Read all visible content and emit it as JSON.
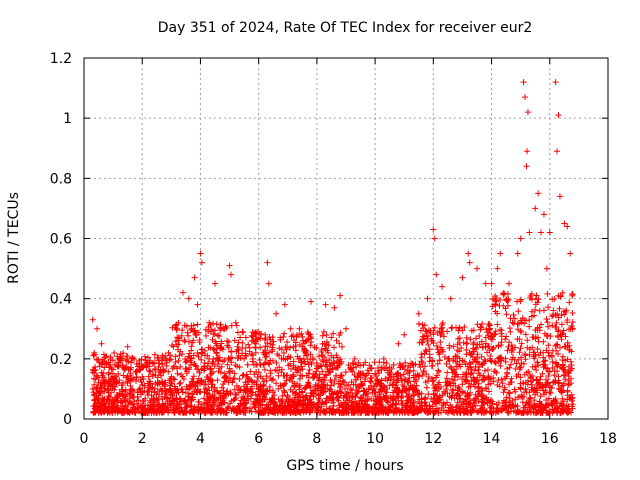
{
  "chart_data": {
    "type": "scatter",
    "title": "Day 351 of 2024, Rate Of TEC Index for receiver eur2",
    "xlabel": "GPS time / hours",
    "ylabel": "ROTI / TECUs",
    "xlim": [
      0,
      18
    ],
    "ylim": [
      0,
      1.2
    ],
    "xticks": [
      "0",
      "2",
      "4",
      "6",
      "8",
      "10",
      "12",
      "14",
      "16",
      "18"
    ],
    "yticks": [
      "0",
      "0.2",
      "0.4",
      "0.6",
      "0.8",
      "1",
      "1.2"
    ],
    "grid": true,
    "marker": "+",
    "color": "#ff0000",
    "series": [
      {
        "name": "ROTI",
        "note": "dense scatter, roughly 0.02–0.35 TECUs from ~0.3 h to ~16.8 h",
        "x": [
          0.3,
          0.35,
          0.45,
          0.5,
          0.6,
          0.9,
          1.2,
          1.5,
          1.6,
          2.0,
          2.1,
          2.6,
          2.9,
          3.2,
          3.4,
          3.6,
          3.7,
          3.8,
          3.9,
          4.0,
          4.05,
          4.3,
          4.5,
          4.8,
          5.0,
          5.05,
          5.5,
          5.9,
          6.3,
          6.35,
          6.6,
          6.9,
          7.1,
          7.4,
          7.6,
          7.8,
          8.3,
          8.6,
          8.8,
          9.0,
          9.3,
          9.6,
          10.0,
          10.3,
          10.8,
          11.0,
          11.5,
          11.8,
          12.0,
          12.05,
          12.1,
          12.3,
          12.6,
          13.0,
          13.2,
          13.25,
          13.5,
          13.8,
          14.0,
          14.2,
          14.3,
          14.6,
          14.9,
          15.0,
          15.1,
          15.15,
          15.2,
          15.22,
          15.25,
          15.3,
          15.5,
          15.6,
          15.7,
          15.8,
          15.9,
          16.0,
          16.2,
          16.25,
          16.3,
          16.35,
          16.5,
          16.6,
          16.7
        ],
        "y": [
          0.33,
          0.22,
          0.3,
          0.12,
          0.25,
          0.18,
          0.2,
          0.24,
          0.15,
          0.14,
          0.18,
          0.12,
          0.22,
          0.3,
          0.42,
          0.4,
          0.3,
          0.47,
          0.38,
          0.55,
          0.52,
          0.32,
          0.45,
          0.3,
          0.51,
          0.48,
          0.2,
          0.25,
          0.52,
          0.45,
          0.35,
          0.38,
          0.3,
          0.3,
          0.22,
          0.39,
          0.38,
          0.37,
          0.41,
          0.3,
          0.2,
          0.18,
          0.15,
          0.2,
          0.25,
          0.28,
          0.35,
          0.4,
          0.63,
          0.6,
          0.48,
          0.44,
          0.4,
          0.47,
          0.55,
          0.52,
          0.5,
          0.45,
          0.45,
          0.5,
          0.55,
          0.45,
          0.55,
          0.6,
          1.12,
          1.07,
          0.84,
          0.89,
          1.02,
          0.62,
          0.7,
          0.75,
          0.62,
          0.68,
          0.5,
          0.62,
          1.12,
          0.89,
          1.01,
          0.74,
          0.65,
          0.64,
          0.55
        ]
      }
    ]
  }
}
